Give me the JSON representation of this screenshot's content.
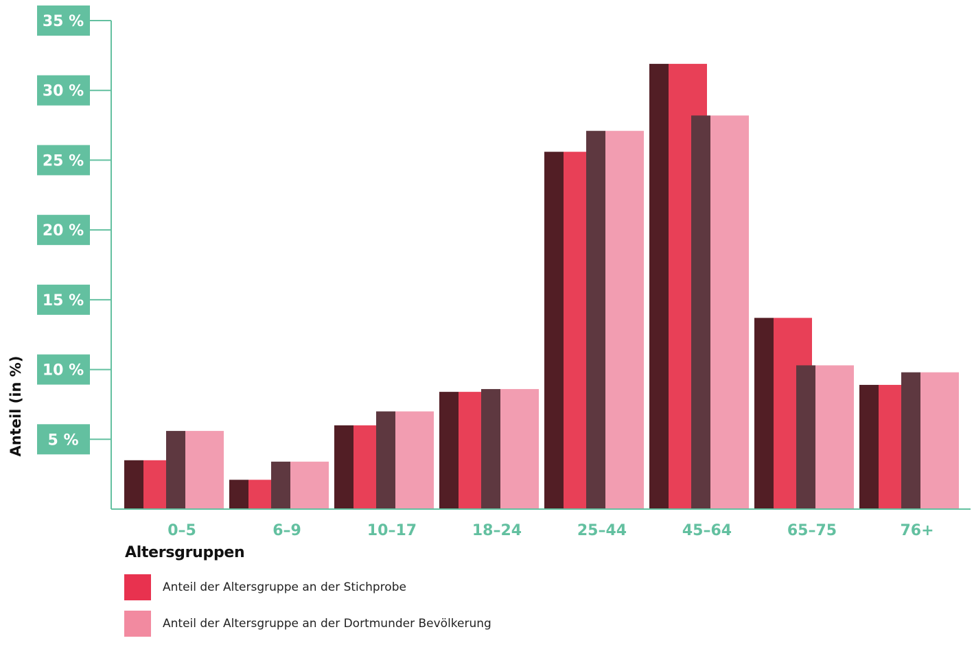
{
  "chart_data": {
    "type": "bar",
    "categories": [
      "0–5",
      "6–9",
      "10–17",
      "18–24",
      "25–44",
      "45–64",
      "65–75",
      "76+"
    ],
    "series": [
      {
        "name": "Anteil der Altersgruppe an der Stichprobe",
        "values": [
          3.5,
          2.1,
          6.0,
          8.4,
          25.6,
          31.9,
          13.7,
          8.9
        ],
        "color": "#e84057",
        "shadow": "#521e25"
      },
      {
        "name": "Anteil der Altersgruppe an der Dortmunder Bevölkerung",
        "values": [
          5.6,
          3.4,
          7.0,
          8.6,
          27.1,
          28.2,
          10.3,
          9.8
        ],
        "color": "#f29db1",
        "shadow": "#5e3840"
      }
    ],
    "yticks": [
      5,
      10,
      15,
      20,
      25,
      30,
      35
    ],
    "ytick_labels": [
      "5 %",
      "10 %",
      "15 %",
      "20 %",
      "25 %",
      "30 %",
      "35 %"
    ],
    "ylim": [
      0,
      35
    ],
    "ylabel": "Anteil (in %)",
    "xlabel": "Altersgruppen",
    "grid": false,
    "legend_position": "bottom-left",
    "axis_color": "#63c0a0"
  }
}
